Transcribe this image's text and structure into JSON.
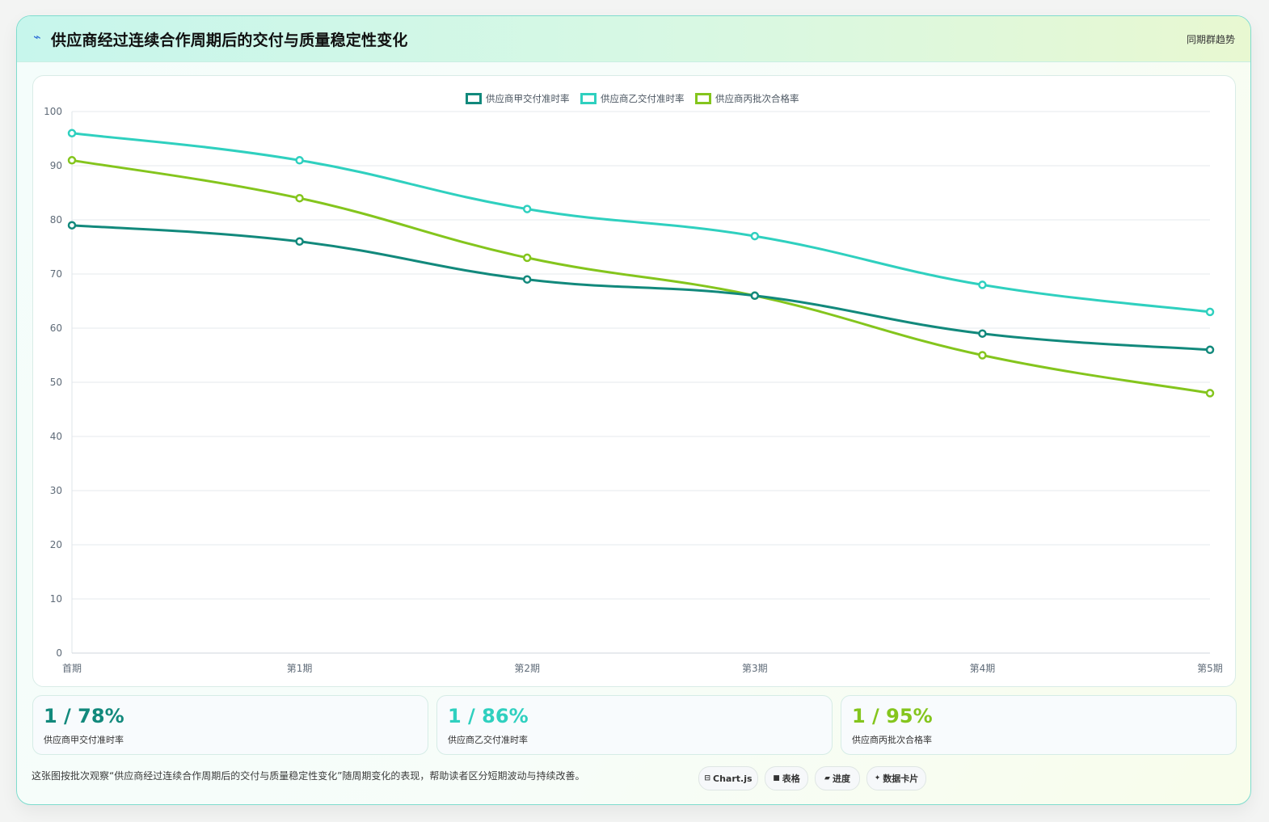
{
  "header": {
    "icon": "lightning-icon",
    "title": "供应商经过连续合作周期后的交付与质量稳定性变化",
    "tag": "同期群趋势"
  },
  "chart_data": {
    "type": "line",
    "categories": [
      "首期",
      "第1期",
      "第2期",
      "第3期",
      "第4期",
      "第5期"
    ],
    "series": [
      {
        "name": "供应商甲交付准时率",
        "color": "#12897c",
        "values": [
          79,
          76,
          69,
          66,
          59,
          56
        ]
      },
      {
        "name": "供应商乙交付准时率",
        "color": "#2fd0bf",
        "values": [
          96,
          91,
          82,
          77,
          68,
          63
        ]
      },
      {
        "name": "供应商丙批次合格率",
        "color": "#84c51d",
        "values": [
          91,
          84,
          73,
          66,
          55,
          48
        ]
      }
    ],
    "ylim": [
      0,
      100
    ],
    "yticks": [
      "0",
      "10",
      "20",
      "30",
      "40",
      "50",
      "60",
      "70",
      "80",
      "90",
      "100"
    ],
    "grid": true,
    "legend_position": "top-center"
  },
  "stats": [
    {
      "value": "1 / 78%",
      "label": "供应商甲交付准时率",
      "color": "#12897c"
    },
    {
      "value": "1 / 86%",
      "label": "供应商乙交付准时率",
      "color": "#2fd0bf"
    },
    {
      "value": "1 / 95%",
      "label": "供应商丙批次合格率",
      "color": "#84c51d"
    }
  ],
  "footer": {
    "note": "这张图按批次观察“供应商经过连续合作周期后的交付与质量稳定性变化”随周期变化的表现，帮助读者区分短期波动与持续改善。",
    "chips": [
      {
        "icon": "chart-icon",
        "glyph": "⊟",
        "label": "Chart.js"
      },
      {
        "icon": "table-icon",
        "glyph": "■",
        "label": "表格"
      },
      {
        "icon": "progress-icon",
        "glyph": "▰",
        "label": "进度"
      },
      {
        "icon": "sparkle-icon",
        "glyph": "✦",
        "label": "数据卡片"
      }
    ]
  }
}
